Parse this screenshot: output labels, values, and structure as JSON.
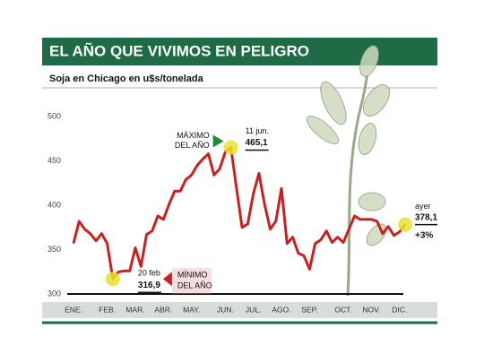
{
  "chart_data": {
    "type": "line",
    "title": "EL AÑO QUE VIVIMOS EN PELIGRO",
    "subtitle": "Soja en Chicago en u$s/tonelada",
    "categories": [
      "ENE.",
      null,
      null,
      null,
      null,
      null,
      "FEB.",
      null,
      null,
      null,
      null,
      "MAR.",
      null,
      null,
      null,
      null,
      "ABR.",
      null,
      null,
      null,
      null,
      "MAY.",
      null,
      null,
      null,
      null,
      null,
      "JUN.",
      null,
      null,
      null,
      null,
      "JUL.",
      null,
      null,
      null,
      null,
      "AGO.",
      null,
      null,
      null,
      null,
      "SEP.",
      null,
      null,
      null,
      null,
      null,
      "OCT.",
      null,
      null,
      null,
      null,
      "NOV.",
      null,
      null,
      null,
      null,
      "DIC.",
      null
    ],
    "series": [
      {
        "name": "Soja",
        "color": "#cc1f1f",
        "values": [
          357,
          382,
          373,
          368,
          360,
          368,
          357,
          316.9,
          325,
          326,
          326,
          352,
          331,
          367,
          371,
          388,
          384,
          401,
          416,
          416,
          429,
          434,
          445,
          452,
          458,
          434,
          441,
          460,
          465.1,
          419,
          375,
          379,
          413,
          436,
          401,
          373,
          382,
          419,
          357,
          364,
          346,
          343,
          328,
          357,
          361,
          371,
          358,
          364,
          358,
          373,
          388,
          384,
          384,
          384,
          382,
          368,
          376,
          366,
          370,
          378.1
        ]
      }
    ],
    "ylim": [
      300,
      500
    ],
    "yticks": [
      300,
      350,
      400,
      450,
      500
    ],
    "annotations": {
      "max": {
        "date": "11 jun.",
        "label": "465,1",
        "note": [
          "MÁXIMO",
          "DEL AÑO"
        ]
      },
      "min": {
        "date": "20 feb",
        "label": "316,9",
        "note": [
          "MÍNIMO",
          "DEL AÑO"
        ]
      },
      "last": {
        "date": "ayer",
        "label": "378,1",
        "change": "+3%"
      }
    }
  }
}
